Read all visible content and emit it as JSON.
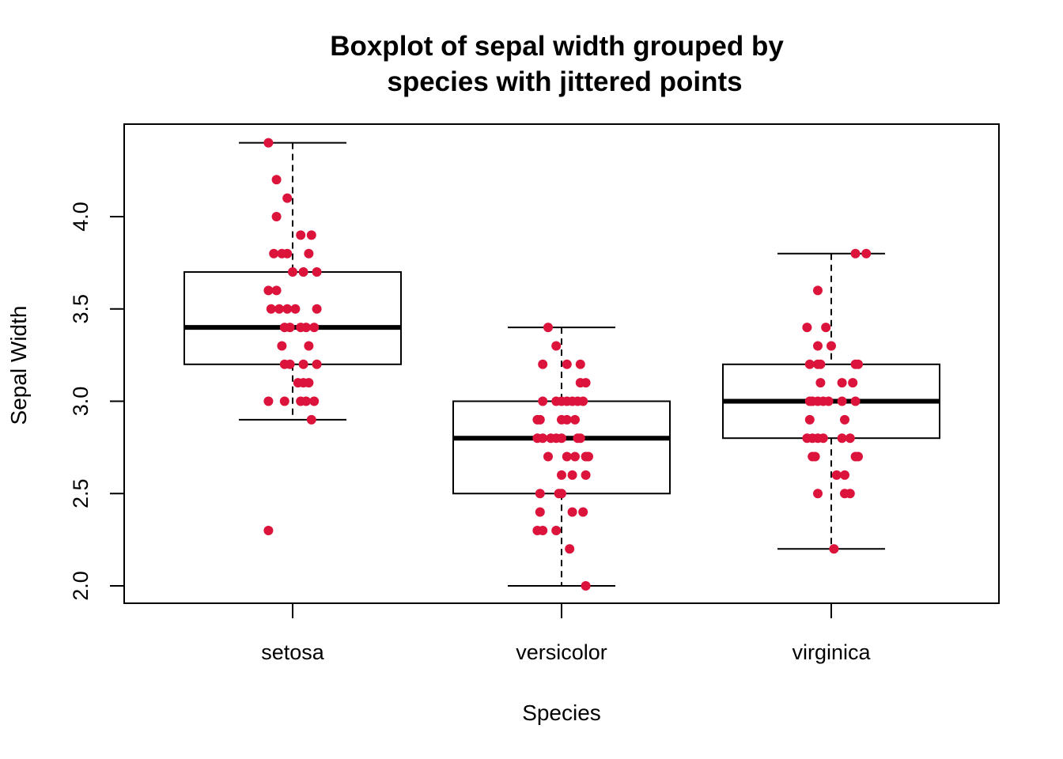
{
  "chart_data": {
    "type": "boxplot",
    "title_lines": [
      "Boxplot of sepal width grouped by",
      "species with jittered points"
    ],
    "xlabel": "Species",
    "ylabel": "Sepal Width",
    "ylim": [
      1.95,
      4.45
    ],
    "yticks": [
      2.0,
      2.5,
      3.0,
      3.5,
      4.0
    ],
    "ytick_labels": [
      "2.0",
      "2.5",
      "3.0",
      "3.5",
      "4.0"
    ],
    "point_color": "#DC143C",
    "box_color": "#000000",
    "grid": false,
    "legend": "none",
    "categories": [
      "setosa",
      "versicolor",
      "virginica"
    ],
    "boxes": [
      {
        "name": "setosa",
        "whisker_low": 2.9,
        "q1": 3.2,
        "median": 3.4,
        "q3": 3.7,
        "whisker_high": 4.4,
        "outliers": [
          2.3
        ]
      },
      {
        "name": "versicolor",
        "whisker_low": 2.0,
        "q1": 2.5,
        "median": 2.8,
        "q3": 3.0,
        "whisker_high": 3.4,
        "outliers": []
      },
      {
        "name": "virginica",
        "whisker_low": 2.2,
        "q1": 2.8,
        "median": 3.0,
        "q3": 3.2,
        "whisker_high": 3.8,
        "outliers": []
      }
    ],
    "points": [
      [
        {
          "jitter": -0.09,
          "y": 4.4
        },
        {
          "jitter": -0.06,
          "y": 4.2
        },
        {
          "jitter": -0.02,
          "y": 4.1
        },
        {
          "jitter": -0.06,
          "y": 4.0
        },
        {
          "jitter": 0.03,
          "y": 3.9
        },
        {
          "jitter": 0.07,
          "y": 3.9
        },
        {
          "jitter": -0.07,
          "y": 3.8
        },
        {
          "jitter": -0.04,
          "y": 3.8
        },
        {
          "jitter": -0.02,
          "y": 3.8
        },
        {
          "jitter": 0.06,
          "y": 3.8
        },
        {
          "jitter": 0.0,
          "y": 3.7
        },
        {
          "jitter": 0.04,
          "y": 3.7
        },
        {
          "jitter": 0.09,
          "y": 3.7
        },
        {
          "jitter": -0.09,
          "y": 3.6
        },
        {
          "jitter": -0.06,
          "y": 3.6
        },
        {
          "jitter": -0.08,
          "y": 3.5
        },
        {
          "jitter": -0.05,
          "y": 3.5
        },
        {
          "jitter": -0.02,
          "y": 3.5
        },
        {
          "jitter": 0.01,
          "y": 3.5
        },
        {
          "jitter": 0.09,
          "y": 3.5
        },
        {
          "jitter": -0.03,
          "y": 3.4
        },
        {
          "jitter": -0.01,
          "y": 3.4
        },
        {
          "jitter": 0.03,
          "y": 3.4
        },
        {
          "jitter": 0.05,
          "y": 3.4
        },
        {
          "jitter": 0.08,
          "y": 3.4
        },
        {
          "jitter": -0.04,
          "y": 3.3
        },
        {
          "jitter": 0.06,
          "y": 3.3
        },
        {
          "jitter": -0.03,
          "y": 3.2
        },
        {
          "jitter": -0.01,
          "y": 3.2
        },
        {
          "jitter": 0.04,
          "y": 3.2
        },
        {
          "jitter": 0.09,
          "y": 3.2
        },
        {
          "jitter": 0.02,
          "y": 3.1
        },
        {
          "jitter": 0.04,
          "y": 3.1
        },
        {
          "jitter": 0.06,
          "y": 3.1
        },
        {
          "jitter": -0.09,
          "y": 3.0
        },
        {
          "jitter": -0.03,
          "y": 3.0
        },
        {
          "jitter": 0.03,
          "y": 3.0
        },
        {
          "jitter": 0.05,
          "y": 3.0
        },
        {
          "jitter": 0.08,
          "y": 3.0
        },
        {
          "jitter": 0.07,
          "y": 2.9
        },
        {
          "jitter": -0.09,
          "y": 2.3
        }
      ],
      [
        {
          "jitter": -0.05,
          "y": 3.4
        },
        {
          "jitter": -0.02,
          "y": 3.3
        },
        {
          "jitter": -0.07,
          "y": 3.2
        },
        {
          "jitter": 0.02,
          "y": 3.2
        },
        {
          "jitter": 0.07,
          "y": 3.2
        },
        {
          "jitter": 0.07,
          "y": 3.1
        },
        {
          "jitter": 0.09,
          "y": 3.1
        },
        {
          "jitter": -0.07,
          "y": 3.0
        },
        {
          "jitter": -0.02,
          "y": 3.0
        },
        {
          "jitter": 0.0,
          "y": 3.0
        },
        {
          "jitter": 0.02,
          "y": 3.0
        },
        {
          "jitter": 0.04,
          "y": 3.0
        },
        {
          "jitter": 0.06,
          "y": 3.0
        },
        {
          "jitter": 0.08,
          "y": 3.0
        },
        {
          "jitter": -0.09,
          "y": 2.9
        },
        {
          "jitter": -0.08,
          "y": 2.9
        },
        {
          "jitter": 0.0,
          "y": 2.9
        },
        {
          "jitter": 0.02,
          "y": 2.9
        },
        {
          "jitter": 0.05,
          "y": 2.9
        },
        {
          "jitter": -0.09,
          "y": 2.8
        },
        {
          "jitter": -0.07,
          "y": 2.8
        },
        {
          "jitter": -0.04,
          "y": 2.8
        },
        {
          "jitter": -0.02,
          "y": 2.8
        },
        {
          "jitter": 0.0,
          "y": 2.8
        },
        {
          "jitter": 0.06,
          "y": 2.8
        },
        {
          "jitter": 0.07,
          "y": 2.8
        },
        {
          "jitter": -0.05,
          "y": 2.7
        },
        {
          "jitter": 0.02,
          "y": 2.7
        },
        {
          "jitter": 0.05,
          "y": 2.7
        },
        {
          "jitter": 0.09,
          "y": 2.7
        },
        {
          "jitter": 0.1,
          "y": 2.7
        },
        {
          "jitter": 0.0,
          "y": 2.6
        },
        {
          "jitter": 0.04,
          "y": 2.6
        },
        {
          "jitter": 0.09,
          "y": 2.6
        },
        {
          "jitter": -0.08,
          "y": 2.5
        },
        {
          "jitter": -0.01,
          "y": 2.5
        },
        {
          "jitter": 0.0,
          "y": 2.5
        },
        {
          "jitter": -0.08,
          "y": 2.4
        },
        {
          "jitter": 0.04,
          "y": 2.4
        },
        {
          "jitter": 0.08,
          "y": 2.4
        },
        {
          "jitter": -0.09,
          "y": 2.3
        },
        {
          "jitter": -0.07,
          "y": 2.3
        },
        {
          "jitter": -0.02,
          "y": 2.3
        },
        {
          "jitter": 0.03,
          "y": 2.2
        },
        {
          "jitter": 0.09,
          "y": 2.0
        }
      ],
      [
        {
          "jitter": 0.09,
          "y": 3.8
        },
        {
          "jitter": 0.13,
          "y": 3.8
        },
        {
          "jitter": -0.05,
          "y": 3.6
        },
        {
          "jitter": -0.09,
          "y": 3.4
        },
        {
          "jitter": -0.02,
          "y": 3.4
        },
        {
          "jitter": -0.05,
          "y": 3.3
        },
        {
          "jitter": 0.0,
          "y": 3.3
        },
        {
          "jitter": -0.08,
          "y": 3.2
        },
        {
          "jitter": -0.05,
          "y": 3.2
        },
        {
          "jitter": -0.04,
          "y": 3.2
        },
        {
          "jitter": 0.09,
          "y": 3.2
        },
        {
          "jitter": 0.1,
          "y": 3.2
        },
        {
          "jitter": -0.04,
          "y": 3.1
        },
        {
          "jitter": 0.04,
          "y": 3.1
        },
        {
          "jitter": 0.08,
          "y": 3.1
        },
        {
          "jitter": -0.08,
          "y": 3.0
        },
        {
          "jitter": -0.07,
          "y": 3.0
        },
        {
          "jitter": -0.05,
          "y": 3.0
        },
        {
          "jitter": -0.03,
          "y": 3.0
        },
        {
          "jitter": -0.01,
          "y": 3.0
        },
        {
          "jitter": 0.04,
          "y": 3.0
        },
        {
          "jitter": 0.09,
          "y": 3.0
        },
        {
          "jitter": -0.08,
          "y": 2.9
        },
        {
          "jitter": 0.05,
          "y": 2.9
        },
        {
          "jitter": -0.09,
          "y": 2.8
        },
        {
          "jitter": -0.07,
          "y": 2.8
        },
        {
          "jitter": -0.05,
          "y": 2.8
        },
        {
          "jitter": -0.03,
          "y": 2.8
        },
        {
          "jitter": 0.04,
          "y": 2.8
        },
        {
          "jitter": 0.07,
          "y": 2.8
        },
        {
          "jitter": -0.07,
          "y": 2.7
        },
        {
          "jitter": -0.06,
          "y": 2.7
        },
        {
          "jitter": 0.09,
          "y": 2.7
        },
        {
          "jitter": 0.1,
          "y": 2.7
        },
        {
          "jitter": 0.02,
          "y": 2.6
        },
        {
          "jitter": 0.05,
          "y": 2.6
        },
        {
          "jitter": -0.05,
          "y": 2.5
        },
        {
          "jitter": 0.05,
          "y": 2.5
        },
        {
          "jitter": 0.07,
          "y": 2.5
        },
        {
          "jitter": 0.01,
          "y": 2.2
        }
      ]
    ]
  }
}
